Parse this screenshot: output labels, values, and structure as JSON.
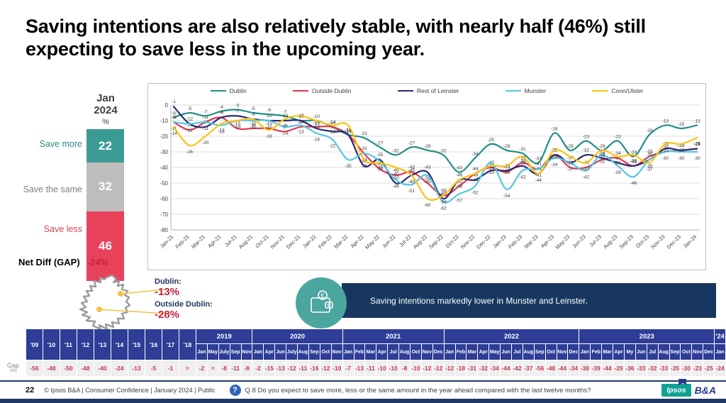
{
  "slide": {
    "title": "Saving intentions are also relatively stable, with nearly half (46%) still expecting to save less in the upcoming year.",
    "page_number": "22",
    "footer_text": "© Ipsos B&A | Consumer Confidence | January 2024 | Public",
    "question_icon": "?",
    "question_text": "Q.8 Do you expect to save more, less or the same amount in the year ahead compared with the last twelve months?",
    "logo": {
      "ipsos": "Ipsos",
      "ba": "B&A"
    }
  },
  "summary_panel": {
    "period_label": "Jan 2024",
    "unit_label": "%",
    "segments": [
      {
        "label": "Save more",
        "value": 22,
        "color": "#3C9C94"
      },
      {
        "label": "Save the same",
        "value": 32,
        "color": "#BDBDBD"
      },
      {
        "label": "Save less",
        "value": 46,
        "color": "#E8425B"
      }
    ],
    "net_diff_label": "Net Diff (GAP)",
    "net_diff_value": "-24%"
  },
  "chart_data": {
    "type": "line",
    "title": "",
    "xlabel": "",
    "ylabel": "",
    "ylim": [
      -80,
      0
    ],
    "ytick_step": 10,
    "grid": true,
    "legend_position": "top",
    "x": [
      "Jan-21",
      "Feb-21",
      "Mar-21",
      "Apr-21",
      "Jul-21",
      "Aug-21",
      "Oct-21",
      "Nov-21",
      "Dec-21",
      "Jan-22",
      "Feb-22",
      "Mar-22",
      "Apr-22",
      "May-22",
      "Jun-22",
      "Jul-22",
      "Aug-22",
      "Sep-22",
      "Oct-22",
      "Nov-22",
      "Dec-22",
      "Jan-23",
      "Feb-23",
      "Mar-23",
      "Apr-23",
      "May-23",
      "Jun-23",
      "Jul-23",
      "Aug-23",
      "Sep-23",
      "Oct-23",
      "Nov-23",
      "Dec-23",
      "Jan-24"
    ],
    "series": [
      {
        "name": "Dublin",
        "color": "#218F87",
        "values": [
          -8,
          -5,
          -7,
          -4,
          -3,
          -5,
          -6,
          -7,
          -10,
          -10,
          -14,
          -19,
          -21,
          -27,
          -32,
          -27,
          -29,
          -32,
          -43,
          -34,
          -25,
          -29,
          -31,
          -37,
          -18,
          -29,
          -23,
          -29,
          -23,
          -33,
          -19,
          -13,
          -15,
          -13
        ]
      },
      {
        "name": "Outside Dublin",
        "color": "#E03A52",
        "values": [
          -11,
          -16,
          -11,
          -8,
          -15,
          -15,
          -15,
          -17,
          -14,
          -14,
          -14,
          -19,
          -31,
          -41,
          -45,
          -43,
          -50,
          -58,
          -52,
          -44,
          -40,
          -43,
          -37,
          -41,
          -32,
          -40,
          -40,
          -35,
          -34,
          -39,
          -33,
          -30,
          -29,
          -28
        ]
      },
      {
        "name": "Rest of Leinster",
        "color": "#2D2A70",
        "values": [
          -1,
          -12,
          -14,
          -8,
          -7,
          -9,
          -10,
          -10,
          -10,
          -15,
          -17,
          -19,
          -39,
          -35,
          -50,
          -45,
          -43,
          -60,
          -48,
          -48,
          -42,
          -42,
          -39,
          -44,
          -32,
          -37,
          -32,
          -34,
          -37,
          -39,
          -35,
          -28,
          -29,
          -28
        ]
      },
      {
        "name": "Munster",
        "color": "#53C6E4",
        "values": [
          -11,
          -12,
          -11,
          -13,
          -10,
          -10,
          -10,
          -14,
          -13,
          -18,
          -22,
          -35,
          -31,
          -36,
          -48,
          -51,
          -45,
          -62,
          -57,
          -52,
          -37,
          -54,
          -42,
          -41,
          -34,
          -37,
          -42,
          -32,
          -39,
          -46,
          -35,
          -30,
          -30,
          -30
        ]
      },
      {
        "name": "Conn/Ulster",
        "color": "#FFC20E",
        "values": [
          -14,
          -26,
          -20,
          -12,
          -10,
          -9,
          -16,
          -9,
          -7,
          -10,
          -13,
          -13,
          -35,
          -37,
          -40,
          -45,
          -60,
          -58,
          -48,
          -44,
          -39,
          -39,
          -33,
          -44,
          -29,
          -33,
          -37,
          -29,
          -33,
          -32,
          -37,
          -25,
          -25,
          -21
        ]
      }
    ]
  },
  "map_callout": {
    "dublin_label": "Dublin:",
    "dublin_value": "-13%",
    "outside_label": "Outside Dublin:",
    "outside_value": "-28%"
  },
  "highlight": {
    "icon": "wallet-euro-icon",
    "text": "Saving intentions markedly lower in Munster and Leinster."
  },
  "gap_table": {
    "row_label": "Gap",
    "row_sublabel": "(%)",
    "years": [
      {
        "label": "'09",
        "value": "-56"
      },
      {
        "label": "'10",
        "value": "-48"
      },
      {
        "label": "'11",
        "value": "-50"
      },
      {
        "label": "'12",
        "value": "-48"
      },
      {
        "label": "'13",
        "value": "-40"
      },
      {
        "label": "'14",
        "value": "-24"
      },
      {
        "label": "'15",
        "value": "-13"
      },
      {
        "label": "'16",
        "value": "-5"
      },
      {
        "label": "'17",
        "value": "-1"
      },
      {
        "label": "'18",
        "value": "="
      }
    ],
    "groups": [
      {
        "label": "2019",
        "months": [
          "Jan",
          "May",
          "July",
          "Sep",
          "Nov"
        ],
        "values": [
          "-2",
          "=",
          "-8",
          "-11",
          "-8"
        ]
      },
      {
        "label": "2020",
        "months": [
          "Jan",
          "Apr",
          "Jun",
          "July",
          "Aug",
          "Sep",
          "Oct",
          "Nov"
        ],
        "values": [
          "-2",
          "-15",
          "-13",
          "-12",
          "-11",
          "-16",
          "-12",
          "-10"
        ]
      },
      {
        "label": "2021",
        "months": [
          "Jan",
          "Feb",
          "Mar",
          "Apr",
          "Jul",
          "Aug",
          "Oct",
          "Nov",
          "Dec"
        ],
        "values": [
          "-7",
          "-13",
          "-11",
          "-10",
          "-10",
          "-8",
          "-10",
          "-12",
          "-12"
        ]
      },
      {
        "label": "2022",
        "months": [
          "Jan",
          "Feb",
          "Mar",
          "Apr",
          "May",
          "Jun",
          "Jul",
          "Aug",
          "Sep",
          "Oct",
          "Nov",
          "Dec"
        ],
        "values": [
          "-12",
          "-18",
          "-31",
          "-32",
          "-34",
          "-44",
          "-42",
          "-37",
          "-56",
          "-48",
          "-44",
          "-34"
        ]
      },
      {
        "label": "2023",
        "months": [
          "Jan",
          "Feb",
          "Mar",
          "Apr",
          "My",
          "Jun",
          "Jul",
          "Aug",
          "Sep",
          "Oct",
          "Nov",
          "Dec"
        ],
        "values": [
          "-38",
          "-39",
          "-44",
          "-29",
          "-36",
          "-33",
          "-32",
          "-33",
          "-35",
          "-30",
          "-23",
          "-25"
        ]
      },
      {
        "label": "'24",
        "months": [
          "Jan"
        ],
        "values": [
          "-24"
        ]
      }
    ]
  }
}
